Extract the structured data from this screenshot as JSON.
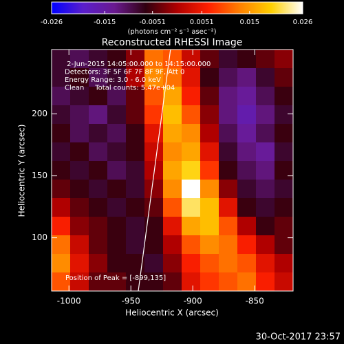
{
  "chart_data": {
    "type": "heatmap",
    "title": "Reconstructed RHESSI Image",
    "xlabel": "Heliocentric X (arcsec)",
    "ylabel": "Heliocentric Y (arcsec)",
    "annotations": [
      " 2-Jun-2015 14:05:00.000 to 14:15:00.000",
      "Detectors: 3F 5F 6F 7F 8F 9F, Att 0",
      "Energy Range: 3.0 - 6.0 keV",
      "Clean     Total counts: 5.47e+04"
    ],
    "peak_label": "Position of Peak = [-899,135]",
    "timestamp": "30-Oct-2017 23:57",
    "colorbar_label": "(photons cm⁻² s⁻¹ asec⁻²)",
    "colorbar_lim": [
      -0.026,
      0.026
    ],
    "colorbar_ticks": [
      -0.026,
      -0.015,
      -0.0051,
      0.0051,
      0.015,
      0.026
    ],
    "colormap": [
      "#0000ff",
      "#5a1ecc",
      "#6a1a90",
      "#300010",
      "#b00000",
      "#ff2000",
      "#ff8000",
      "#ffd000",
      "#ffffff"
    ],
    "xlim": [
      -1014,
      -819
    ],
    "ylim": [
      57,
      252
    ],
    "xticks": [
      -1000,
      -950,
      -900,
      -850
    ],
    "yticks": [
      100,
      150,
      200
    ],
    "x": [
      -1006.5,
      -991.5,
      -976.5,
      -961.5,
      -946.5,
      -931.5,
      -916.5,
      -901.5,
      -886.5,
      -871.5,
      -856.5,
      -841.5,
      -826.5
    ],
    "y": [
      244.5,
      229.5,
      214.5,
      199.5,
      184.5,
      169.5,
      154.5,
      139.5,
      124.5,
      109.5,
      94.5,
      79.5,
      64.5
    ],
    "z": [
      [
        -0.008,
        -0.01,
        -0.008,
        -0.006,
        -0.002,
        0.012,
        0.01,
        0.002,
        -0.004,
        -0.008,
        -0.006,
        -0.004,
        -0.002
      ],
      [
        -0.008,
        -0.006,
        -0.01,
        -0.008,
        0.0,
        0.014,
        0.012,
        0.004,
        -0.006,
        -0.01,
        -0.012,
        -0.008,
        -0.004
      ],
      [
        -0.01,
        -0.008,
        -0.006,
        -0.01,
        -0.004,
        0.01,
        0.016,
        0.006,
        -0.004,
        -0.012,
        -0.014,
        -0.01,
        -0.006
      ],
      [
        -0.008,
        -0.01,
        -0.012,
        -0.008,
        -0.004,
        0.008,
        0.018,
        0.01,
        -0.002,
        -0.012,
        -0.016,
        -0.012,
        -0.008
      ],
      [
        -0.006,
        -0.01,
        -0.008,
        -0.01,
        -0.006,
        0.004,
        0.016,
        0.014,
        0.0,
        -0.01,
        -0.014,
        -0.01,
        -0.006
      ],
      [
        -0.008,
        -0.006,
        -0.01,
        -0.008,
        -0.006,
        0.002,
        0.014,
        0.016,
        0.004,
        -0.008,
        -0.012,
        -0.014,
        -0.008
      ],
      [
        -0.006,
        -0.008,
        -0.006,
        -0.01,
        -0.008,
        0.0,
        0.016,
        0.02,
        0.008,
        -0.006,
        -0.01,
        -0.012,
        -0.006
      ],
      [
        -0.004,
        -0.006,
        -0.008,
        -0.006,
        -0.008,
        -0.002,
        0.014,
        0.026,
        0.014,
        -0.002,
        -0.008,
        -0.01,
        -0.008
      ],
      [
        0.0,
        -0.004,
        -0.006,
        -0.008,
        -0.006,
        -0.004,
        0.01,
        0.022,
        0.018,
        0.004,
        -0.006,
        -0.008,
        -0.006
      ],
      [
        0.006,
        -0.002,
        -0.004,
        -0.006,
        -0.008,
        -0.006,
        0.004,
        0.016,
        0.018,
        0.01,
        0.0,
        -0.006,
        -0.004
      ],
      [
        0.012,
        0.002,
        -0.004,
        -0.006,
        -0.008,
        -0.006,
        0.0,
        0.01,
        0.014,
        0.012,
        0.006,
        0.0,
        -0.004
      ],
      [
        0.014,
        0.004,
        -0.002,
        -0.006,
        -0.006,
        -0.008,
        -0.002,
        0.006,
        0.01,
        0.012,
        0.01,
        0.004,
        0.0
      ],
      [
        0.01,
        0.002,
        -0.004,
        -0.004,
        -0.006,
        -0.006,
        -0.004,
        0.004,
        0.008,
        0.01,
        0.012,
        0.006,
        0.002
      ]
    ],
    "limb": {
      "x": [
        -944,
        -918
      ],
      "y": [
        57,
        252
      ],
      "color": "#ffffff"
    }
  }
}
